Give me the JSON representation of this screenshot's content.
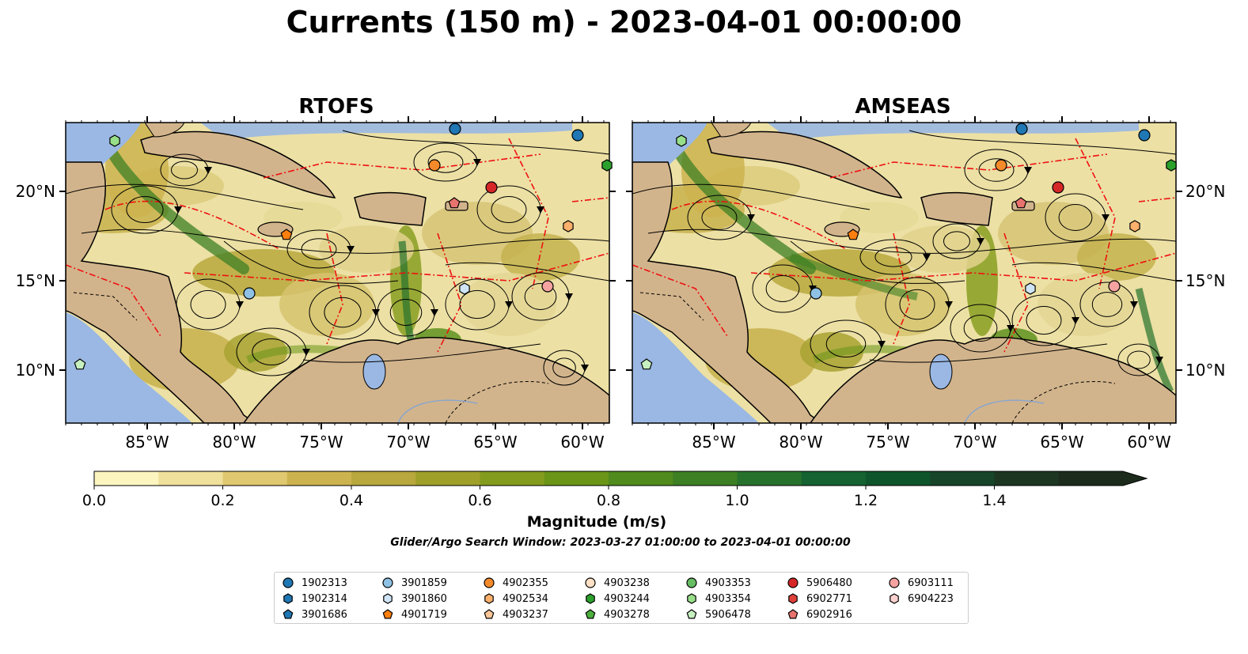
{
  "title": "Currents (150 m) - 2023-04-01 00:00:00",
  "panels": [
    {
      "title": "RTOFS"
    },
    {
      "title": "AMSEAS"
    }
  ],
  "axes": {
    "lon_ticks": [
      "85°W",
      "80°W",
      "75°W",
      "70°W",
      "65°W",
      "60°W"
    ],
    "lat_ticks": [
      "20°N",
      "15°N",
      "10°N"
    ]
  },
  "colorbar": {
    "label": "Magnitude (m/s)",
    "ticks": [
      "0.0",
      "0.2",
      "0.4",
      "0.6",
      "0.8",
      "1.0",
      "1.2",
      "1.4"
    ],
    "colors": [
      "#fcf5c0",
      "#efe09b",
      "#dfc86f",
      "#cdb34f",
      "#b8a83d",
      "#9fa02a",
      "#849c1e",
      "#6a9517",
      "#508b1d",
      "#3d8024",
      "#26722c",
      "#156330",
      "#0f552c",
      "#174529",
      "#1c3622",
      "#1c2b1c"
    ]
  },
  "search_window": "Glider/Argo Search Window: 2023-03-27 01:00:00 to 2023-04-01 00:00:00",
  "colors": {
    "land": "#d2b48c",
    "water": "#9ab8e3",
    "eez": "#ee1111"
  },
  "legend": {
    "columns": [
      [
        {
          "id": "1902313",
          "marker": "circle",
          "color": "#1f77b4"
        },
        {
          "id": "1902314",
          "marker": "hexagon",
          "color": "#1f77b4"
        },
        {
          "id": "3901686",
          "marker": "pentagon",
          "color": "#1f77b4"
        }
      ],
      [
        {
          "id": "3901859",
          "marker": "circle",
          "color": "#8ec1e4"
        },
        {
          "id": "3901860",
          "marker": "hexagon",
          "color": "#cfe4f5"
        },
        {
          "id": "4901719",
          "marker": "pentagon",
          "color": "#ff7f0e"
        }
      ],
      [
        {
          "id": "4902355",
          "marker": "circle",
          "color": "#f58a2b"
        },
        {
          "id": "4902534",
          "marker": "hexagon",
          "color": "#fdb06b"
        },
        {
          "id": "4903237",
          "marker": "pentagon",
          "color": "#fdc79a"
        }
      ],
      [
        {
          "id": "4903238",
          "marker": "circle",
          "color": "#fde0c5"
        },
        {
          "id": "4903244",
          "marker": "hexagon",
          "color": "#2ca02c"
        },
        {
          "id": "4903278",
          "marker": "pentagon",
          "color": "#4caf3e"
        }
      ],
      [
        {
          "id": "4903353",
          "marker": "circle",
          "color": "#66bd63"
        },
        {
          "id": "4903354",
          "marker": "hexagon",
          "color": "#98df8a"
        },
        {
          "id": "5906478",
          "marker": "pentagon",
          "color": "#c7f0c0"
        }
      ],
      [
        {
          "id": "5906480",
          "marker": "circle",
          "color": "#d62728"
        },
        {
          "id": "6902771",
          "marker": "hexagon",
          "color": "#e0403a"
        },
        {
          "id": "6902916",
          "marker": "pentagon",
          "color": "#e8736e"
        }
      ],
      [
        {
          "id": "6903111",
          "marker": "circle",
          "color": "#f4a3a0"
        },
        {
          "id": "6904223",
          "marker": "hexagon",
          "color": "#fbd1cf"
        }
      ]
    ]
  }
}
